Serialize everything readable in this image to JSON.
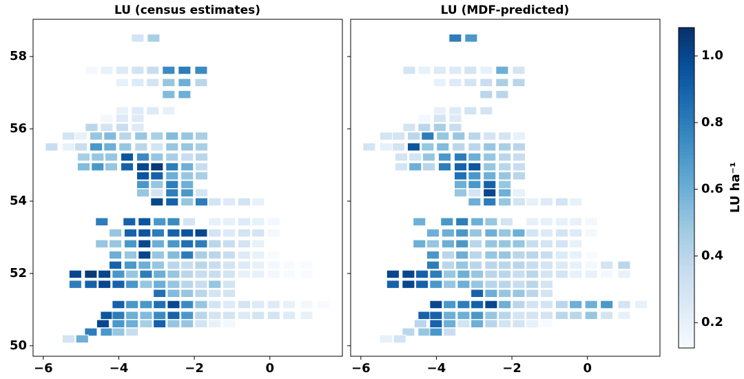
{
  "chart_data": {
    "type": "map",
    "x": [
      -3.5,
      -3.08,
      -4.72,
      -4.32,
      -3.91,
      -3.5,
      -3.1,
      -2.68,
      -2.26,
      -1.82,
      -3.91,
      -3.5,
      -3.1,
      -2.68,
      -2.26,
      -1.82,
      -2.68,
      -2.26,
      -3.91,
      -3.5,
      -3.1,
      -2.68,
      -4.32,
      -3.91,
      -3.5,
      -4.72,
      -4.32,
      -3.91,
      -3.5,
      -5.33,
      -5.0,
      -4.6,
      -4.23,
      -3.83,
      -3.41,
      -2.99,
      -2.59,
      -2.19,
      -1.81,
      -5.78,
      -5.33,
      -5.0,
      -4.6,
      -4.23,
      -3.83,
      -3.41,
      -2.99,
      -2.59,
      -2.19,
      -1.81,
      -4.93,
      -4.56,
      -4.2,
      -3.78,
      -3.36,
      -2.99,
      -2.59,
      -2.19,
      -1.81,
      -4.93,
      -4.56,
      -4.2,
      -3.78,
      -3.36,
      -2.99,
      -2.59,
      -2.19,
      -1.81,
      -3.36,
      -2.99,
      -2.59,
      -2.19,
      -1.81,
      -3.36,
      -2.99,
      -2.59,
      -2.19,
      -3.36,
      -2.99,
      -2.59,
      -2.19,
      -1.81,
      -2.99,
      -2.59,
      -2.19,
      -1.81,
      -1.46,
      -1.08,
      -0.68,
      -0.31,
      -4.45,
      -3.72,
      -3.32,
      -2.92,
      -2.55,
      -2.14,
      -1.46,
      -1.08,
      -0.68,
      -0.31,
      0.1,
      -4.09,
      -3.69,
      -3.32,
      -2.96,
      -2.55,
      -2.19,
      -1.82,
      -1.46,
      -1.08,
      -0.68,
      -0.31,
      0.1,
      -4.45,
      -4.09,
      -3.69,
      -3.32,
      -2.96,
      -2.55,
      -2.19,
      -1.82,
      -1.46,
      -1.08,
      -0.68,
      -0.31,
      -4.09,
      -3.69,
      -3.32,
      -2.96,
      -2.55,
      -2.19,
      -1.82,
      -1.46,
      -1.08,
      -0.68,
      -0.31,
      0.1,
      -4.09,
      -3.69,
      -3.32,
      -2.96,
      -2.55,
      -2.19,
      -1.82,
      -1.46,
      -1.08,
      -0.68,
      -0.31,
      0.1,
      0.51,
      0.97,
      -5.15,
      -4.74,
      -4.38,
      -4.01,
      -3.65,
      -3.28,
      -2.92,
      -2.55,
      -2.19,
      -1.82,
      -1.46,
      -1.08,
      -0.68,
      -0.31,
      0.1,
      0.51,
      0.97,
      -5.15,
      -4.74,
      -4.38,
      -4.01,
      -3.65,
      -3.28,
      -2.92,
      -2.55,
      -2.19,
      -1.82,
      -1.46,
      -1.08,
      -2.92,
      -2.55,
      -2.19,
      -1.82,
      -1.46,
      -1.08,
      -4.01,
      -3.65,
      -3.28,
      -2.92,
      -2.55,
      -2.19,
      -1.82,
      -1.46,
      -1.08,
      -0.68,
      -0.31,
      0.1,
      0.51,
      0.97,
      1.42,
      -4.32,
      -4.01,
      -3.65,
      -3.28,
      -2.92,
      -2.55,
      -2.19,
      -1.82,
      -1.46,
      -1.08,
      -0.68,
      -0.31,
      0.1,
      0.51,
      0.97,
      -4.42,
      -4.01,
      -3.65,
      -3.28,
      -2.92,
      -2.55,
      -2.19,
      -1.82,
      -1.46,
      -1.08,
      -4.74,
      -4.32,
      -4.01,
      -3.65,
      -5.33,
      -4.97
    ],
    "y": [
      58.51,
      58.51,
      57.62,
      57.62,
      57.62,
      57.62,
      57.62,
      57.62,
      57.62,
      57.62,
      57.28,
      57.28,
      57.28,
      57.28,
      57.28,
      57.28,
      56.95,
      56.95,
      56.5,
      56.5,
      56.5,
      56.5,
      56.29,
      56.29,
      56.29,
      56.04,
      56.04,
      56.04,
      56.04,
      55.8,
      55.8,
      55.8,
      55.8,
      55.8,
      55.8,
      55.8,
      55.8,
      55.8,
      55.8,
      55.5,
      55.5,
      55.5,
      55.5,
      55.5,
      55.5,
      55.5,
      55.5,
      55.5,
      55.5,
      55.5,
      55.22,
      55.22,
      55.22,
      55.22,
      55.22,
      55.22,
      55.22,
      55.22,
      55.22,
      54.95,
      54.95,
      54.95,
      54.95,
      54.95,
      54.95,
      54.95,
      54.95,
      54.95,
      54.7,
      54.7,
      54.7,
      54.7,
      54.7,
      54.46,
      54.46,
      54.46,
      54.46,
      54.23,
      54.23,
      54.23,
      54.23,
      54.23,
      53.98,
      53.98,
      53.98,
      53.98,
      53.98,
      53.98,
      53.98,
      53.98,
      53.43,
      53.43,
      53.43,
      53.43,
      53.43,
      53.43,
      53.43,
      53.43,
      53.43,
      53.43,
      53.43,
      53.12,
      53.12,
      53.12,
      53.12,
      53.12,
      53.12,
      53.12,
      53.12,
      53.12,
      53.12,
      53.12,
      53.12,
      52.82,
      52.82,
      52.82,
      52.82,
      52.82,
      52.82,
      52.82,
      52.82,
      52.82,
      52.82,
      52.82,
      52.82,
      52.51,
      52.51,
      52.51,
      52.51,
      52.51,
      52.51,
      52.51,
      52.51,
      52.51,
      52.51,
      52.51,
      52.51,
      52.23,
      52.23,
      52.23,
      52.23,
      52.23,
      52.23,
      52.23,
      52.23,
      52.23,
      52.23,
      52.23,
      52.23,
      52.23,
      52.23,
      51.98,
      51.98,
      51.98,
      51.98,
      51.98,
      51.98,
      51.98,
      51.98,
      51.98,
      51.98,
      51.98,
      51.98,
      51.98,
      51.98,
      51.98,
      51.98,
      51.98,
      51.7,
      51.7,
      51.7,
      51.7,
      51.7,
      51.7,
      51.7,
      51.7,
      51.7,
      51.7,
      51.7,
      51.7,
      51.45,
      51.45,
      51.45,
      51.45,
      51.45,
      51.45,
      51.14,
      51.14,
      51.14,
      51.14,
      51.14,
      51.14,
      51.14,
      51.14,
      51.14,
      51.14,
      51.14,
      51.14,
      51.14,
      51.14,
      51.14,
      50.84,
      50.84,
      50.84,
      50.84,
      50.84,
      50.84,
      50.84,
      50.84,
      50.84,
      50.84,
      50.84,
      50.84,
      50.84,
      50.84,
      50.84,
      50.61,
      50.61,
      50.61,
      50.61,
      50.61,
      50.61,
      50.61,
      50.61,
      50.61,
      50.61,
      50.38,
      50.38,
      50.38,
      50.38,
      50.19,
      50.19
    ],
    "series": [
      {
        "name": "LU (census estimates)",
        "values": [
          0.3,
          0.45,
          0.15,
          0.2,
          0.25,
          0.3,
          0.35,
          0.75,
          0.8,
          0.75,
          0.2,
          0.25,
          0.3,
          0.5,
          0.6,
          0.4,
          0.55,
          0.6,
          0.2,
          0.25,
          0.25,
          0.2,
          0.15,
          0.25,
          0.25,
          0.4,
          0.3,
          0.35,
          0.25,
          0.3,
          0.2,
          0.5,
          0.55,
          0.4,
          0.5,
          0.45,
          0.55,
          0.5,
          0.45,
          0.35,
          0.2,
          0.35,
          0.7,
          0.6,
          0.5,
          0.4,
          0.3,
          0.5,
          0.5,
          0.45,
          0.45,
          0.5,
          0.5,
          0.95,
          0.75,
          0.5,
          0.45,
          0.35,
          0.4,
          0.55,
          0.7,
          0.5,
          0.9,
          1.0,
          1.05,
          0.8,
          0.6,
          0.35,
          0.95,
          0.9,
          0.6,
          0.5,
          0.45,
          0.7,
          0.5,
          0.8,
          0.6,
          0.5,
          0.3,
          0.8,
          0.7,
          0.3,
          1.0,
          0.9,
          0.5,
          0.8,
          0.3,
          0.25,
          0.3,
          0.2,
          0.8,
          0.9,
          0.95,
          0.7,
          0.75,
          0.3,
          0.2,
          0.2,
          0.25,
          0.2,
          0.15,
          0.5,
          0.9,
          0.95,
          0.8,
          0.9,
          0.95,
          1.0,
          0.3,
          0.25,
          0.3,
          0.3,
          0.15,
          0.5,
          0.5,
          0.7,
          1.0,
          0.6,
          0.7,
          0.85,
          0.8,
          0.4,
          0.35,
          0.3,
          0.2,
          0.6,
          0.5,
          1.0,
          0.5,
          0.55,
          0.8,
          0.45,
          0.4,
          0.35,
          0.25,
          0.2,
          0.1,
          0.9,
          0.7,
          0.6,
          0.5,
          0.4,
          0.35,
          0.4,
          0.35,
          0.3,
          0.25,
          0.2,
          0.15,
          0.1,
          0.1,
          1.0,
          1.05,
          1.0,
          0.7,
          0.5,
          0.8,
          0.6,
          0.5,
          0.4,
          0.35,
          0.35,
          0.3,
          0.2,
          0.2,
          0.15,
          0.1,
          0.1,
          0.8,
          0.9,
          1.0,
          0.9,
          0.7,
          0.5,
          0.6,
          0.5,
          0.4,
          0.35,
          0.5,
          0.3,
          0.85,
          0.55,
          0.5,
          0.4,
          0.3,
          0.3,
          0.9,
          0.7,
          0.7,
          0.85,
          1.0,
          0.75,
          0.5,
          0.3,
          0.25,
          0.3,
          0.25,
          0.25,
          0.2,
          0.15,
          0.1,
          0.95,
          0.8,
          0.6,
          0.55,
          0.75,
          0.9,
          0.7,
          0.4,
          0.3,
          0.3,
          0.25,
          0.3,
          0.3,
          0.25,
          0.2,
          1.0,
          0.7,
          0.6,
          0.45,
          0.9,
          0.5,
          0.5,
          0.3,
          0.2,
          0.15,
          0.8,
          0.7,
          0.5,
          0.35,
          0.3,
          0.6
        ]
      },
      {
        "name": "LU (MDF-predicted)",
        "values": [
          0.8,
          0.7,
          0.3,
          0.2,
          0.25,
          0.25,
          0.3,
          0.2,
          0.6,
          0.3,
          0.2,
          0.25,
          0.3,
          0.35,
          0.45,
          0.4,
          0.4,
          0.4,
          0.2,
          0.25,
          0.3,
          0.3,
          0.15,
          0.3,
          0.25,
          0.3,
          0.4,
          0.45,
          0.35,
          0.3,
          0.3,
          0.4,
          0.8,
          0.5,
          0.5,
          0.4,
          0.3,
          0.3,
          0.2,
          0.3,
          0.2,
          0.3,
          0.95,
          0.5,
          0.55,
          0.4,
          0.4,
          0.5,
          0.45,
          0.4,
          0.3,
          0.3,
          0.5,
          0.7,
          0.8,
          0.6,
          0.5,
          0.4,
          0.35,
          0.3,
          0.6,
          0.4,
          0.8,
          0.9,
          0.95,
          0.5,
          0.4,
          0.35,
          0.85,
          0.7,
          0.6,
          0.5,
          0.4,
          0.6,
          0.7,
          0.9,
          0.5,
          0.5,
          0.3,
          1.0,
          0.6,
          0.2,
          0.6,
          0.8,
          0.5,
          0.3,
          0.2,
          0.25,
          0.3,
          0.2,
          0.6,
          0.7,
          0.8,
          0.6,
          0.5,
          0.3,
          0.2,
          0.2,
          0.2,
          0.2,
          0.15,
          0.6,
          0.6,
          0.7,
          0.5,
          0.6,
          0.5,
          0.6,
          0.3,
          0.25,
          0.3,
          0.25,
          0.15,
          0.6,
          0.5,
          0.6,
          0.7,
          0.4,
          0.5,
          0.5,
          0.5,
          0.35,
          0.3,
          0.3,
          0.2,
          0.7,
          0.4,
          0.6,
          0.4,
          0.5,
          0.5,
          0.4,
          0.4,
          0.35,
          0.25,
          0.2,
          0.1,
          0.8,
          0.4,
          0.5,
          0.4,
          0.4,
          0.4,
          0.4,
          0.35,
          0.3,
          0.25,
          0.2,
          0.15,
          0.3,
          0.4,
          1.0,
          1.0,
          0.9,
          0.8,
          0.5,
          0.6,
          0.5,
          0.4,
          0.4,
          0.35,
          0.4,
          0.3,
          0.3,
          0.2,
          0.2,
          0.15,
          0.2,
          0.9,
          1.0,
          0.9,
          0.7,
          0.5,
          0.6,
          0.5,
          0.4,
          0.4,
          0.35,
          0.4,
          0.3,
          0.9,
          0.6,
          0.5,
          0.5,
          0.4,
          0.3,
          1.0,
          0.7,
          0.8,
          0.9,
          1.0,
          0.6,
          0.4,
          0.3,
          0.3,
          0.4,
          0.6,
          0.6,
          0.7,
          0.3,
          0.2,
          0.9,
          0.9,
          0.6,
          0.6,
          0.7,
          0.5,
          0.4,
          0.3,
          0.3,
          0.3,
          0.4,
          0.4,
          0.5,
          0.3,
          0.2,
          0.4,
          0.9,
          0.6,
          0.3,
          0.6,
          0.4,
          0.3,
          0.3,
          0.2,
          0.1,
          0.4,
          0.5,
          0.7,
          0.35,
          0.2,
          0.3
        ]
      }
    ],
    "xlim": [
      -6.27,
      1.92
    ],
    "ylim": [
      49.71,
      59.03
    ],
    "xticks": [
      {
        "value": -6,
        "label": "−6"
      },
      {
        "value": -4,
        "label": "−4"
      },
      {
        "value": -2,
        "label": "−2"
      },
      0
    ],
    "yticks": [
      50,
      52,
      54,
      56,
      58
    ],
    "colormap": "Blues",
    "colorbar": {
      "label": "LU ha⁻¹",
      "lim": [
        0.124,
        1.085
      ],
      "ticks": [
        0.2,
        0.4,
        0.6,
        0.8,
        {
          "value": 1,
          "label": "1.0"
        }
      ]
    }
  }
}
